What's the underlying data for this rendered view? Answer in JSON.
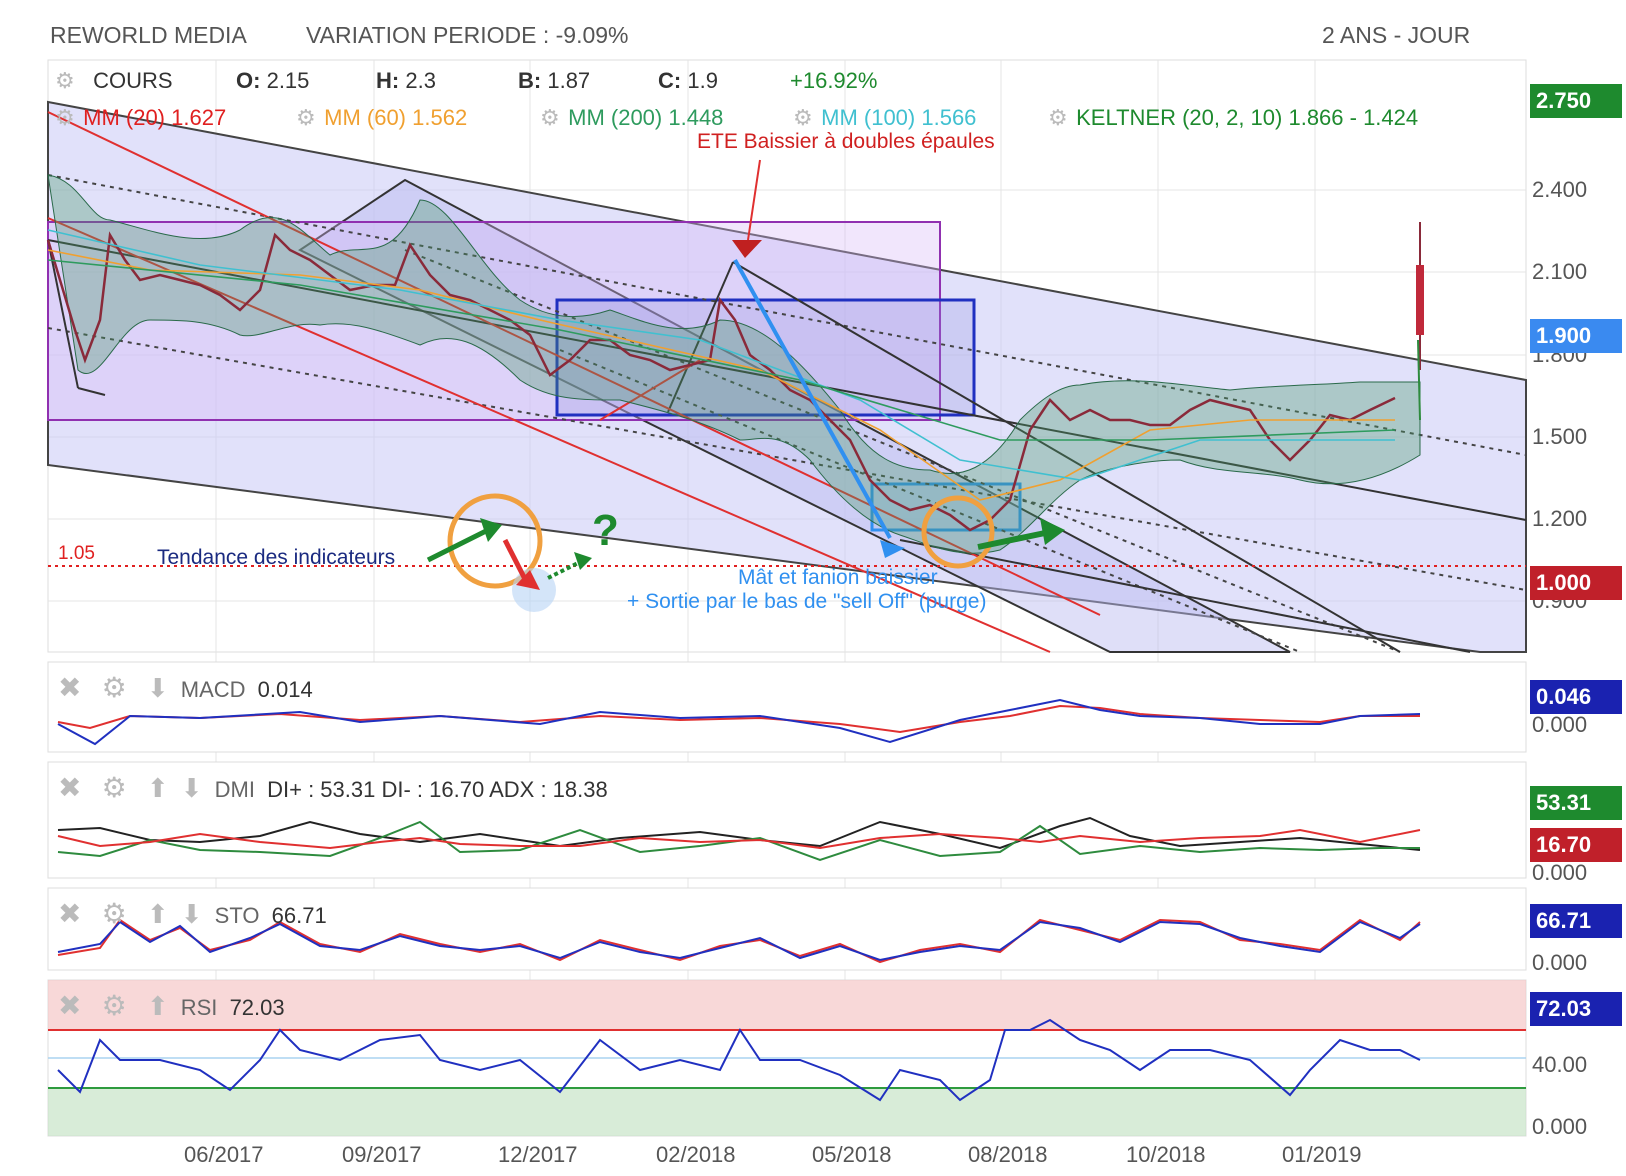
{
  "header": {
    "company": "REWORLD MEDIA",
    "variation": "VARIATION PERIODE : -9.09%",
    "period": "2 ANS - JOUR"
  },
  "quote": {
    "label": "COURS",
    "open_label": "O:",
    "open": "2.15",
    "high_label": "H:",
    "high": "2.3",
    "low_label": "B:",
    "low": "1.87",
    "close_label": "C:",
    "close": "1.9",
    "change": "+16.92%"
  },
  "indicators": {
    "mm20": "MM (20) 1.627",
    "mm60": "MM (60) 1.562",
    "mm200": "MM (200) 1.448",
    "mm100": "MM (100) 1.566",
    "keltner": "KELTNER (20, 2, 10) 1.866 - 1.424"
  },
  "annotations": {
    "ete": "ETE Baissier à doubles épaules",
    "tendance": "Tendance des indicateurs",
    "question": "?",
    "mat_line1": "Mât et fanion baissier",
    "mat_line2": "+ Sortie par le bas de \"sell Off\" (purge)",
    "support": "1.05"
  },
  "price_axis": {
    "ticks": [
      "2.400",
      "2.100",
      "1.800",
      "1.500",
      "1.200",
      "0.900"
    ],
    "badge_top": "2.750",
    "badge_last": "1.900",
    "badge_low": "1.000"
  },
  "x_axis": {
    "ticks": [
      "06/2017",
      "09/2017",
      "12/2017",
      "02/2018",
      "05/2018",
      "08/2018",
      "10/2018",
      "01/2019"
    ]
  },
  "panels": {
    "macd": {
      "label": "MACD",
      "value": "0.014",
      "badge": "0.046",
      "tick": "0.000"
    },
    "dmi": {
      "label": "DMI",
      "values": "DI+ : 53.31 DI- : 16.70 ADX : 18.38",
      "badge_plus": "53.31",
      "badge_minus": "16.70",
      "tick": "0.000"
    },
    "sto": {
      "label": "STO",
      "value": "66.71",
      "badge": "66.71",
      "tick": "0.000"
    },
    "rsi": {
      "label": "RSI",
      "value": "72.03",
      "badge": "72.03",
      "tick_mid": "40.00",
      "tick_low": "0.000"
    }
  },
  "colors": {
    "up": "#2e8b3e",
    "down": "#c0293a",
    "mm20": "#e02020",
    "mm60": "#f0a030",
    "mm200": "#2e9b5e",
    "mm100": "#40c0d0",
    "keltner": "#1e8a2e"
  },
  "chart_data": {
    "type": "line",
    "title": "REWORLD MEDIA",
    "x": [
      "06/2017",
      "09/2017",
      "12/2017",
      "02/2018",
      "05/2018",
      "08/2018",
      "10/2018",
      "01/2019"
    ],
    "series": [
      {
        "name": "COURS",
        "values": [
          2.05,
          2.0,
          1.65,
          1.8,
          1.2,
          1.6,
          1.6,
          1.6
        ]
      }
    ],
    "ylim": [
      0.75,
      2.75
    ],
    "xlabel": "",
    "ylabel": "",
    "grid": true,
    "last": 1.9
  }
}
